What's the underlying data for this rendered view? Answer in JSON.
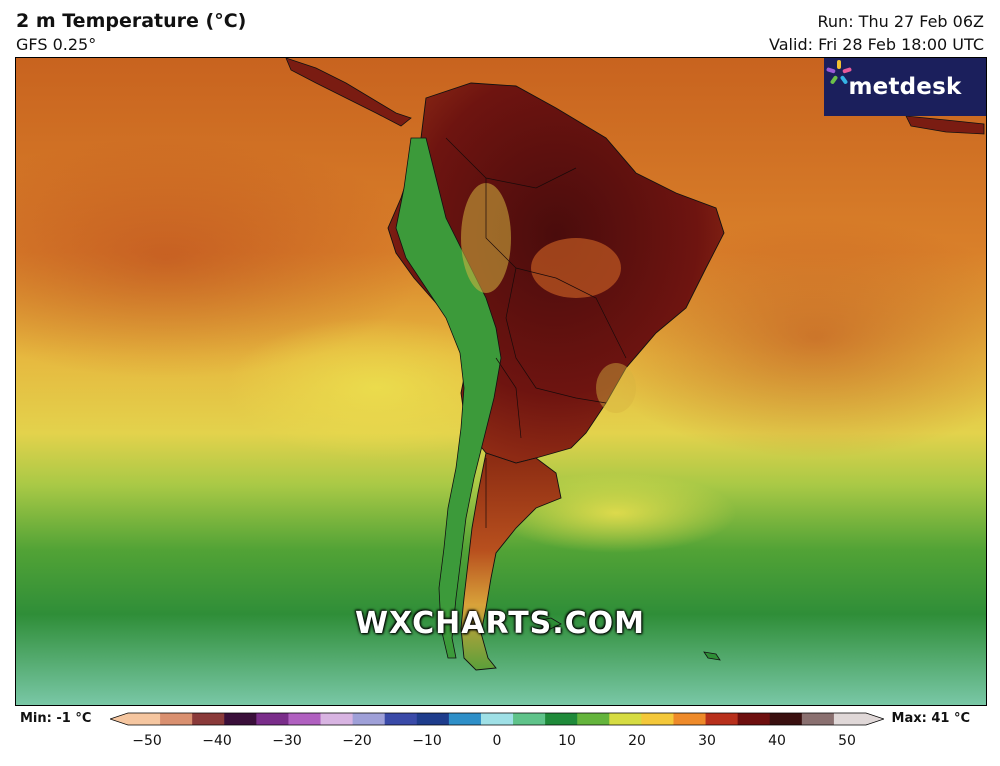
{
  "header": {
    "title": "2 m Temperature (°C)",
    "model": "GFS 0.25°",
    "run": "Run: Thu 27 Feb 06Z",
    "valid": "Valid: Fri 28 Feb 18:00 UTC"
  },
  "brand": {
    "name": "metdesk",
    "icon": "metdesk-logo-icon"
  },
  "watermark": "WXCHARTS.COM",
  "legend": {
    "min_label": "Min: -1 °C",
    "max_label": "Max: 41 °C",
    "min_value": -1,
    "max_value": 41,
    "ticks": [
      "−50",
      "−40",
      "−30",
      "−20",
      "−10",
      "0",
      "10",
      "20",
      "30",
      "40",
      "50"
    ],
    "tick_values": [
      -50,
      -40,
      -30,
      -20,
      -10,
      0,
      10,
      20,
      30,
      40,
      50
    ],
    "colors": [
      "#f5c6a0",
      "#d99070",
      "#8a3a3a",
      "#3a0f3a",
      "#7a2d8a",
      "#b060c0",
      "#d8b4e2",
      "#9fa0d8",
      "#3a4aa8",
      "#1e3c8c",
      "#2e8fc8",
      "#9fe0e6",
      "#5fc38a",
      "#1f8a3a",
      "#64b43c",
      "#d6dc42",
      "#f4c83a",
      "#ee8a2a",
      "#b8301c",
      "#6e0f0f",
      "#3a1010",
      "#8a7070",
      "#e0d8d8"
    ]
  },
  "map": {
    "region": "South America",
    "ocean_gradient_colors": [
      "#c8631f",
      "#dd8a2c",
      "#e7c247",
      "#b9cf4a",
      "#5aa636",
      "#2e8d36",
      "#5ab174",
      "#74c8a4"
    ],
    "land_colors": {
      "hot": "#6e1410",
      "very_hot": "#4a0c0c",
      "warm": "#c5561e",
      "mild": "#e4c84a",
      "cool": "#3c9a3a"
    }
  }
}
